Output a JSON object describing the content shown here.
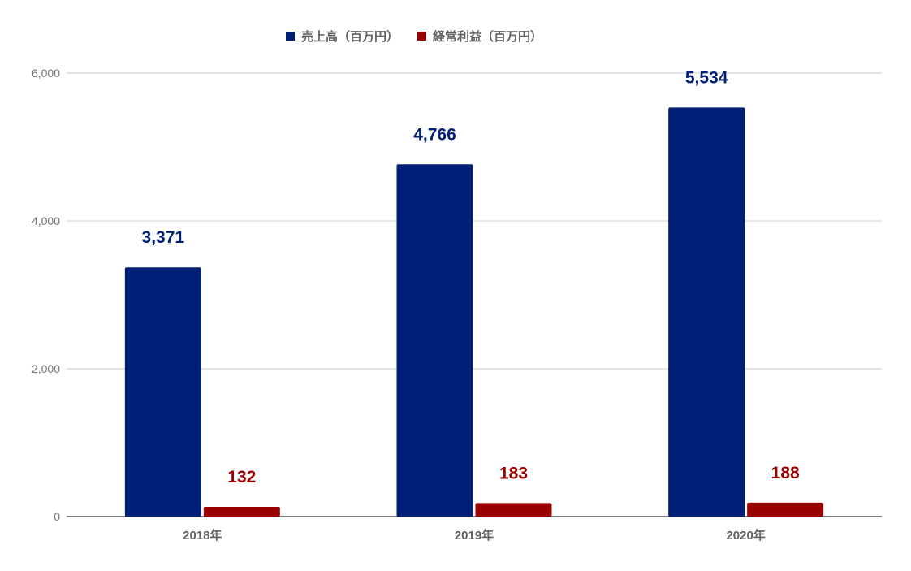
{
  "chart_data": {
    "type": "bar",
    "categories": [
      "2018年",
      "2019年",
      "2020年"
    ],
    "series": [
      {
        "name": "売上高（百万円）",
        "values": [
          3371,
          4766,
          5534
        ],
        "labels": [
          "3,371",
          "4,766",
          "5,534"
        ],
        "color": "#002078"
      },
      {
        "name": "経常利益（百万円）",
        "values": [
          132,
          183,
          188
        ],
        "labels": [
          "132",
          "183",
          "188"
        ],
        "color": "#990000"
      }
    ],
    "yticks": [
      "0",
      "2,000",
      "4,000",
      "6,000"
    ],
    "ylim": [
      0,
      6000
    ],
    "grid": true,
    "legend": "top-center"
  }
}
